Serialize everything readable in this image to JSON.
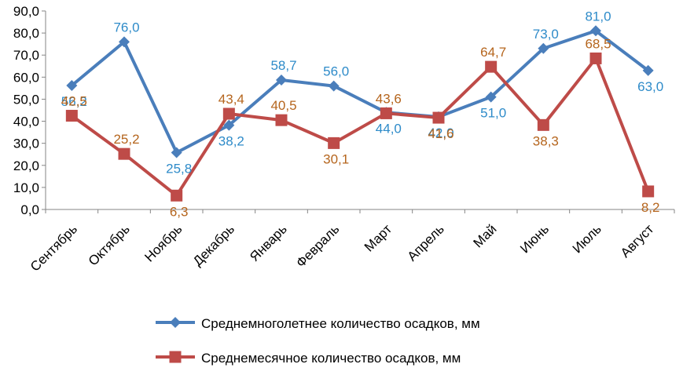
{
  "chart_data": {
    "type": "line",
    "categories": [
      "Сентябрь",
      "Октябрь",
      "Ноябрь",
      "Декабрь",
      "Январь",
      "Февраль",
      "Март",
      "Апрель",
      "Май",
      "Июнь",
      "Июль",
      "Август"
    ],
    "series": [
      {
        "name": "Среднемноголетнее  количество осадков, мм",
        "values": [
          56.2,
          76.0,
          25.8,
          38.2,
          58.7,
          56.0,
          44.0,
          42.0,
          51.0,
          73.0,
          81.0,
          63.0
        ],
        "labels": [
          "56,2",
          "76,0",
          "25,8",
          "38,2",
          "58,7",
          "56,0",
          "44,0",
          "42,0",
          "51,0",
          "73,0",
          "81,0",
          "63,0"
        ],
        "color": "#4a7ebb",
        "label_color": "#2e8bc9",
        "marker": "diamond"
      },
      {
        "name": "Среднемесячное количество осадков, мм",
        "values": [
          42.5,
          25.2,
          6.3,
          43.4,
          40.5,
          30.1,
          43.6,
          41.6,
          64.7,
          38.3,
          68.5,
          8.2
        ],
        "labels": [
          "42,5",
          "25,2",
          "6,3",
          "43,4",
          "40,5",
          "30,1",
          "43,6",
          "41,6",
          "64,7",
          "38,3",
          "68,5",
          "8,2"
        ],
        "color": "#be4b48",
        "label_color": "#b5651d",
        "marker": "square"
      }
    ],
    "ylim": [
      0,
      90
    ],
    "yticks": [
      "0,0",
      "10,0",
      "20,0",
      "30,0",
      "40,0",
      "50,0",
      "60,0",
      "70,0",
      "80,0",
      "90,0"
    ],
    "title": "",
    "xlabel": "",
    "ylabel": "",
    "grid": false,
    "legend_position": "bottom"
  }
}
